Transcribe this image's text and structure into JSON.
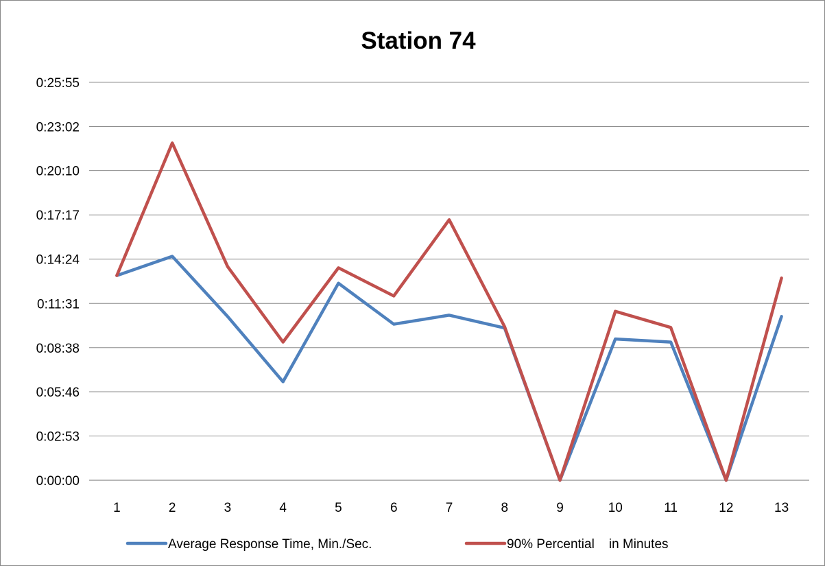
{
  "chart_data": {
    "type": "line",
    "title": "Station 74",
    "xlabel": "",
    "ylabel": "",
    "categories": [
      "1",
      "2",
      "3",
      "4",
      "5",
      "6",
      "7",
      "8",
      "9",
      "10",
      "11",
      "12",
      "13"
    ],
    "y_ticks": [
      "0:00:00",
      "0:02:53",
      "0:05:46",
      "0:08:38",
      "0:11:31",
      "0:14:24",
      "0:17:17",
      "0:20:10",
      "0:23:02",
      "0:25:55"
    ],
    "y_unit": "h:mm:ss",
    "ylim": [
      "0:00:00",
      "0:25:55"
    ],
    "grid": "horizontal",
    "legend_position": "bottom",
    "series": [
      {
        "name": "Average Response Time, Min./Sec.",
        "color": "#4F81BD",
        "values": [
          "0:13:20",
          "0:14:35",
          "0:10:40",
          "0:06:25",
          "0:12:50",
          "0:10:10",
          "0:10:45",
          "0:09:55",
          "0:00:00",
          "0:09:12",
          "0:09:00",
          "0:00:00",
          "0:10:40"
        ]
      },
      {
        "name": "90% Percential    in Minutes",
        "color": "#C0504D",
        "values": [
          "0:13:20",
          "0:21:58",
          "0:13:55",
          "0:09:00",
          "0:13:50",
          "0:12:00",
          "0:16:58",
          "0:10:00",
          "0:00:00",
          "0:11:00",
          "0:09:57",
          "0:00:00",
          "0:13:10"
        ]
      }
    ]
  }
}
